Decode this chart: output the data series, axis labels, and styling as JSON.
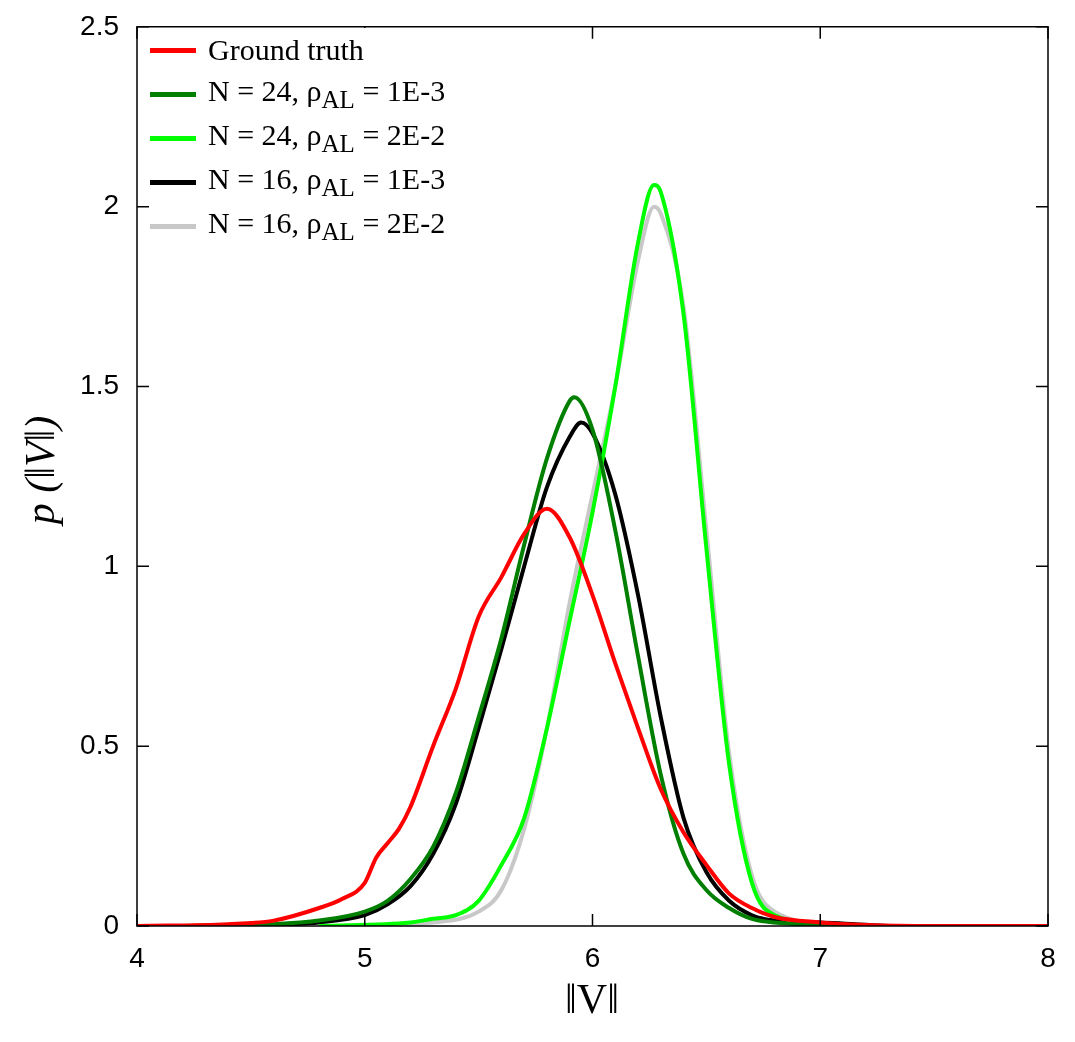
{
  "chart_data": {
    "type": "line",
    "xlabel": "‖V‖",
    "ylabel": "p (‖V‖)",
    "xlim": [
      4,
      8
    ],
    "xticks": [
      4,
      5,
      6,
      7,
      8
    ],
    "ylim": [
      0,
      2.5
    ],
    "yticks": [
      0,
      0.5,
      1,
      1.5,
      2,
      2.5
    ],
    "grid": false,
    "legend": "top left",
    "marker": "none",
    "line_style": "solid",
    "series": [
      {
        "name": "Ground truth",
        "color": "#ff0000",
        "x": [
          4,
          4.4,
          4.6,
          4.8,
          4.9,
          5,
          5.05,
          5.1,
          5.15,
          5.2,
          5.3,
          5.4,
          5.5,
          5.6,
          5.7,
          5.8,
          5.9,
          6,
          6.1,
          6.2,
          6.3,
          6.4,
          6.5,
          6.6,
          6.7,
          6.8,
          7,
          7.2,
          7.5,
          8
        ],
        "values": [
          0,
          0.005,
          0.015,
          0.05,
          0.075,
          0.12,
          0.19,
          0.23,
          0.27,
          0.33,
          0.5,
          0.66,
          0.86,
          0.97,
          1.09,
          1.16,
          1.08,
          0.92,
          0.73,
          0.55,
          0.38,
          0.26,
          0.17,
          0.09,
          0.05,
          0.025,
          0.01,
          0.003,
          0,
          0
        ]
      },
      {
        "name": "N = 24, ρ$_{AL}$ = 1E-3",
        "color": "#007f00",
        "x": [
          4.2,
          4.6,
          4.8,
          5,
          5.1,
          5.2,
          5.3,
          5.4,
          5.5,
          5.6,
          5.7,
          5.8,
          5.9,
          5.92,
          6,
          6.1,
          6.2,
          6.3,
          6.4,
          6.5,
          6.6,
          6.7,
          6.9,
          7.2
        ],
        "values": [
          0,
          0.005,
          0.015,
          0.04,
          0.07,
          0.13,
          0.22,
          0.37,
          0.58,
          0.8,
          1.06,
          1.3,
          1.46,
          1.47,
          1.38,
          1.1,
          0.75,
          0.42,
          0.2,
          0.1,
          0.05,
          0.02,
          0.005,
          0
        ]
      },
      {
        "name": "N = 24, ρ$_{AL}$ = 2E-2",
        "color": "#00ff00",
        "x": [
          4.8,
          5.2,
          5.3,
          5.4,
          5.5,
          5.6,
          5.7,
          5.8,
          5.9,
          6,
          6.1,
          6.2,
          6.27,
          6.3,
          6.4,
          6.5,
          6.6,
          6.7,
          6.8,
          7.1
        ],
        "values": [
          0,
          0.01,
          0.02,
          0.03,
          0.07,
          0.17,
          0.3,
          0.55,
          0.85,
          1.15,
          1.5,
          1.9,
          2.06,
          2.04,
          1.7,
          1.05,
          0.45,
          0.12,
          0.03,
          0
        ]
      },
      {
        "name": "N = 16, ρ$_{AL}$ = 1E-3",
        "color": "#000000",
        "x": [
          4.4,
          4.8,
          5,
          5.1,
          5.2,
          5.3,
          5.4,
          5.5,
          5.6,
          5.7,
          5.8,
          5.9,
          5.95,
          6,
          6.1,
          6.2,
          6.3,
          6.4,
          6.5,
          6.6,
          6.7,
          6.8,
          7,
          7.3
        ],
        "values": [
          0,
          0.01,
          0.03,
          0.06,
          0.11,
          0.2,
          0.34,
          0.55,
          0.77,
          1,
          1.22,
          1.36,
          1.4,
          1.37,
          1.2,
          0.92,
          0.58,
          0.3,
          0.15,
          0.07,
          0.03,
          0.015,
          0.01,
          0
        ]
      },
      {
        "name": "N = 16, ρ$_{AL}$ = 2E-2",
        "color": "#c8c8c8",
        "x": [
          4.9,
          5.3,
          5.5,
          5.6,
          5.7,
          5.8,
          5.9,
          6,
          6.1,
          6.2,
          6.27,
          6.3,
          6.4,
          6.5,
          6.6,
          6.7,
          6.8,
          7.1
        ],
        "values": [
          0,
          0.01,
          0.04,
          0.1,
          0.27,
          0.55,
          0.9,
          1.2,
          1.5,
          1.85,
          2,
          1.98,
          1.72,
          1.1,
          0.48,
          0.14,
          0.04,
          0
        ]
      }
    ]
  }
}
